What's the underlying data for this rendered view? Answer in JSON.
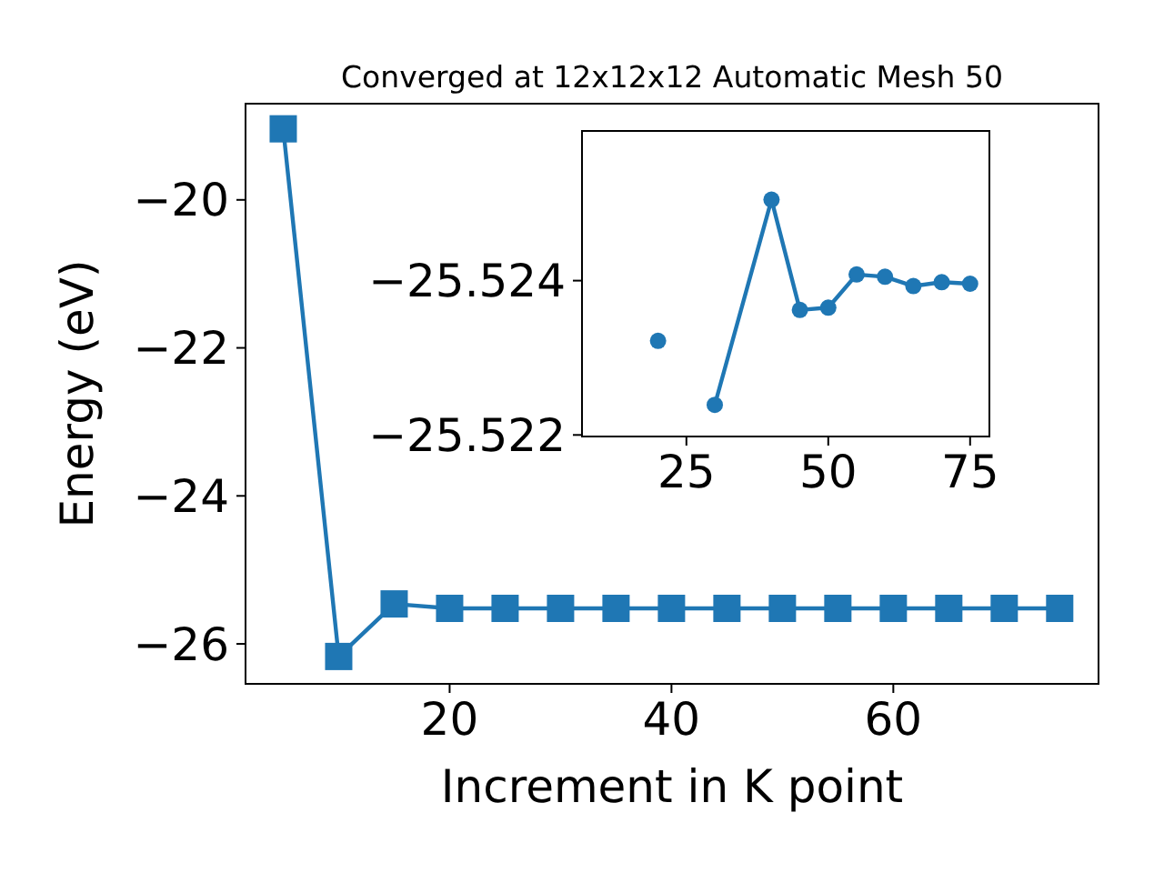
{
  "chart_data": [
    {
      "type": "line",
      "title": "Converged at 12x12x12 Automatic Mesh 50",
      "xlabel": "Increment in K point",
      "ylabel": "Energy (eV)",
      "x": [
        5,
        10,
        15,
        20,
        25,
        30,
        35,
        40,
        45,
        50,
        55,
        60,
        65,
        70,
        75
      ],
      "series": [
        {
          "color": "#1f77b4",
          "values": [
            -19.04,
            -26.17,
            -25.46,
            -25.52,
            -25.52,
            -25.52,
            -25.52,
            -25.52,
            -25.52,
            -25.52,
            -25.52,
            -25.52,
            -25.52,
            -25.52,
            -25.52
          ]
        }
      ],
      "xlim": [
        1.6,
        78.5
      ],
      "ylim": [
        -26.54,
        -18.7
      ],
      "xticks": [
        20,
        40,
        60
      ],
      "yticks": [
        -26,
        -24,
        -22,
        -20
      ],
      "marker": "square",
      "grid": false
    },
    {
      "type": "line",
      "x": [
        20,
        25,
        30,
        40,
        45,
        50,
        55,
        60,
        65,
        70,
        75
      ],
      "series": [
        {
          "color": "#1f77b4",
          "values": [
            -25.52322,
            null,
            -25.52239,
            -25.52505,
            -25.52362,
            -25.52365,
            -25.52408,
            -25.52405,
            -25.52393,
            -25.52398,
            -25.52396
          ]
        }
      ],
      "xlim": [
        6.6,
        78.4
      ],
      "ylim": [
        -25.52198,
        -25.52594
      ],
      "xticks": [
        25,
        50,
        75
      ],
      "yticks": [
        -25.524,
        -25.522
      ],
      "marker": "circle",
      "grid": false
    }
  ]
}
